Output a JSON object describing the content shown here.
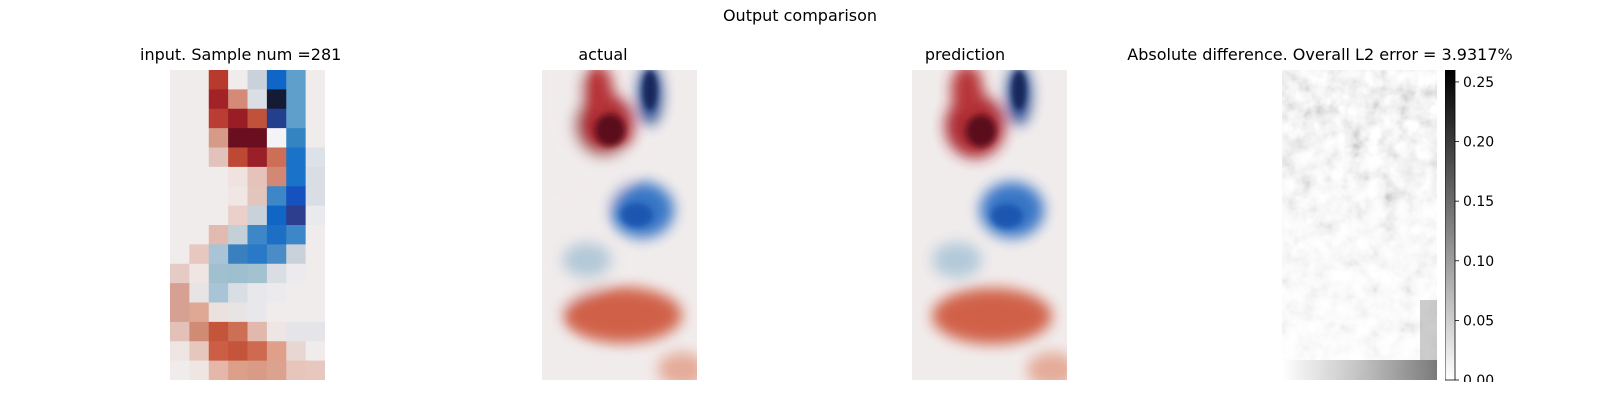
{
  "figure": {
    "suptitle": "Output comparison"
  },
  "chart_data": [
    {
      "type": "heatmap",
      "title": "input. Sample num =281",
      "grid": false,
      "axes": "off",
      "colormap": "balance",
      "nx": 8,
      "ny": 16
    },
    {
      "type": "heatmap",
      "title": "actual",
      "grid": false,
      "axes": "off",
      "colormap": "balance"
    },
    {
      "type": "heatmap",
      "title": "prediction",
      "grid": false,
      "axes": "off",
      "colormap": "balance"
    },
    {
      "type": "heatmap",
      "title": "Absolute difference. Overall L2 error = 3.9317%",
      "grid": false,
      "axes": "off",
      "colormap": "gray_r",
      "colorbar": {
        "ticks": [
          "0.00",
          "0.05",
          "0.10",
          "0.15",
          "0.20",
          "0.25"
        ],
        "tick_values": [
          0,
          0.05,
          0.1,
          0.15,
          0.2,
          0.25
        ],
        "range": [
          0,
          0.26
        ],
        "location": "right"
      }
    }
  ]
}
